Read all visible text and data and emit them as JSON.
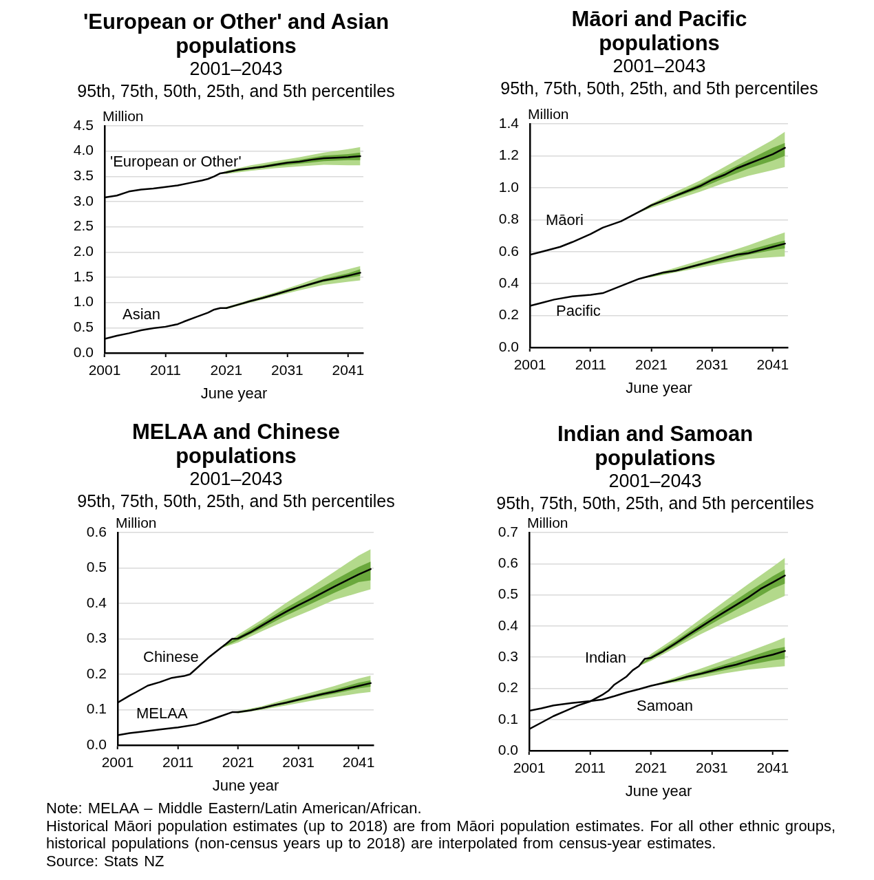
{
  "chart_data": [
    {
      "type": "line",
      "title": "'European or Other' and Asian populations",
      "subtitle": "2001–2043\n95th, 75th, 50th, 25th, and 5th percentiles",
      "xlabel": "June year",
      "ylabel": "Million",
      "xlim": [
        2001,
        2043.5
      ],
      "xticks": [
        2001,
        2011,
        2021,
        2031,
        2041
      ],
      "ylim": [
        0,
        4.5
      ],
      "yticks": [
        {
          "value": 0,
          "label": "0.0"
        },
        0.5,
        {
          "value": 1,
          "label": "1.0"
        },
        1.5,
        {
          "value": 2,
          "label": "2.0"
        },
        2.5,
        {
          "value": 3,
          "label": "3.0"
        },
        3.5,
        {
          "value": 4,
          "label": "4.0"
        },
        4.5
      ],
      "grid": "y",
      "marker": "none",
      "series": [
        {
          "name": "'European or Other'",
          "color": "#000000",
          "x": [
            2001,
            2003,
            2005,
            2007,
            2009,
            2011,
            2013,
            2015,
            2017,
            2018,
            2019,
            2020,
            2021,
            2023,
            2025,
            2027,
            2029,
            2031,
            2033,
            2035,
            2037,
            2039,
            2041,
            2043
          ],
          "values": [
            3.08,
            3.12,
            3.2,
            3.24,
            3.26,
            3.29,
            3.32,
            3.37,
            3.42,
            3.45,
            3.5,
            3.56,
            3.58,
            3.63,
            3.66,
            3.69,
            3.73,
            3.77,
            3.79,
            3.83,
            3.86,
            3.87,
            3.88,
            3.9
          ]
        },
        {
          "name": "Asian",
          "color": "#000000",
          "x": [
            2001,
            2003,
            2005,
            2007,
            2009,
            2011,
            2013,
            2014,
            2016,
            2018,
            2019,
            2020,
            2021,
            2023,
            2025,
            2027,
            2029,
            2031,
            2033,
            2035,
            2037,
            2039,
            2041,
            2043
          ],
          "values": [
            0.28,
            0.34,
            0.39,
            0.45,
            0.49,
            0.52,
            0.57,
            0.62,
            0.71,
            0.8,
            0.86,
            0.89,
            0.89,
            0.96,
            1.03,
            1.09,
            1.16,
            1.23,
            1.3,
            1.37,
            1.44,
            1.48,
            1.53,
            1.59
          ]
        },
        {
          "color": "#b3d98b",
          "x": [
            2020,
            2021,
            2025,
            2029,
            2033,
            2037,
            2041,
            2043
          ],
          "values": [
            null,
            null,
            null,
            null,
            null,
            null,
            null,
            null
          ],
          "lower": [
            3.56,
            3.55,
            3.61,
            3.66,
            3.7,
            3.73,
            3.72,
            3.72
          ],
          "upper": [
            3.56,
            3.61,
            3.72,
            3.8,
            3.88,
            3.97,
            4.04,
            4.08
          ]
        },
        {
          "color": "#6aa83c",
          "x": [
            2020,
            2021,
            2025,
            2029,
            2033,
            2037,
            2041,
            2043
          ],
          "values": [
            null,
            null,
            null,
            null,
            null,
            null,
            null,
            null
          ],
          "lower": [
            3.56,
            3.57,
            3.64,
            3.7,
            3.75,
            3.8,
            3.82,
            3.82
          ],
          "upper": [
            3.56,
            3.59,
            3.68,
            3.76,
            3.83,
            3.91,
            3.94,
            3.97
          ]
        },
        {
          "color": "#b3d98c",
          "x": [
            2020,
            2021,
            2025,
            2029,
            2033,
            2037,
            2041,
            2043
          ],
          "values": [
            null,
            null,
            null,
            null,
            null,
            null,
            null,
            null
          ],
          "lower": [
            0.89,
            0.87,
            1.0,
            1.12,
            1.24,
            1.35,
            1.41,
            1.44
          ],
          "upper": [
            0.89,
            0.91,
            1.06,
            1.2,
            1.36,
            1.53,
            1.66,
            1.72
          ]
        },
        {
          "color": "#6aa83d",
          "x": [
            2020,
            2021,
            2025,
            2029,
            2033,
            2037,
            2041,
            2043
          ],
          "values": [
            null,
            null,
            null,
            null,
            null,
            null,
            null,
            null
          ],
          "lower": [
            0.89,
            0.88,
            1.02,
            1.14,
            1.28,
            1.41,
            1.49,
            1.53
          ],
          "upper": [
            0.89,
            0.9,
            1.04,
            1.18,
            1.32,
            1.47,
            1.58,
            1.66
          ]
        }
      ]
    },
    {
      "type": "line",
      "title": "Māori and Pacific populations",
      "subtitle": "2001–2043\n95th, 75th, 50th, 25th, and 5th percentiles",
      "xlabel": "June year",
      "ylabel": "Million",
      "xlim": [
        2001,
        2043.5
      ],
      "xticks": [
        2001,
        2011,
        2021,
        2031,
        2041
      ],
      "ylim": [
        0,
        1.4
      ],
      "yticks": [
        {
          "value": 0,
          "label": "0.0"
        },
        0.2,
        0.4,
        0.6,
        0.8,
        {
          "value": 1,
          "label": "1.0"
        },
        1.2,
        1.4
      ],
      "grid": "y",
      "marker": "none",
      "series": [
        {
          "name": "Māori",
          "color": "#000000",
          "x": [
            2001,
            2003,
            2006,
            2008,
            2011,
            2013,
            2016,
            2018,
            2020,
            2021,
            2023,
            2025,
            2027,
            2029,
            2031,
            2033,
            2035,
            2037,
            2039,
            2041,
            2043
          ],
          "values": [
            0.58,
            0.6,
            0.63,
            0.66,
            0.71,
            0.75,
            0.79,
            0.83,
            0.87,
            0.89,
            0.92,
            0.95,
            0.98,
            1.01,
            1.05,
            1.08,
            1.12,
            1.15,
            1.18,
            1.21,
            1.25
          ]
        },
        {
          "name": "Pacific",
          "color": "#000000",
          "x": [
            2001,
            2003,
            2005,
            2008,
            2011,
            2013,
            2015,
            2017,
            2019,
            2021,
            2023,
            2025,
            2027,
            2029,
            2031,
            2033,
            2035,
            2037,
            2039,
            2041,
            2043
          ],
          "values": [
            0.26,
            0.28,
            0.3,
            0.32,
            0.33,
            0.34,
            0.37,
            0.4,
            0.43,
            0.45,
            0.47,
            0.48,
            0.5,
            0.52,
            0.54,
            0.56,
            0.58,
            0.59,
            0.61,
            0.63,
            0.65
          ]
        },
        {
          "color": "#b3d98b",
          "x": [
            2018,
            2021,
            2025,
            2029,
            2033,
            2037,
            2041,
            2043
          ],
          "values": [
            null,
            null,
            null,
            null,
            null,
            null,
            null,
            null
          ],
          "lower": [
            0.83,
            0.875,
            0.925,
            0.975,
            1.03,
            1.075,
            1.11,
            1.13
          ],
          "upper": [
            0.83,
            0.9,
            0.975,
            1.045,
            1.13,
            1.215,
            1.3,
            1.35
          ]
        },
        {
          "color": "#6aa83c",
          "x": [
            2018,
            2021,
            2025,
            2029,
            2033,
            2037,
            2041,
            2043
          ],
          "values": [
            null,
            null,
            null,
            null,
            null,
            null,
            null,
            null
          ],
          "lower": [
            0.83,
            0.883,
            0.94,
            0.995,
            1.06,
            1.12,
            1.17,
            1.2
          ],
          "upper": [
            0.83,
            0.893,
            0.96,
            1.025,
            1.1,
            1.175,
            1.25,
            1.28
          ]
        },
        {
          "color": "#b3d98c",
          "x": [
            2019,
            2021,
            2025,
            2029,
            2033,
            2037,
            2041,
            2043
          ],
          "values": [
            null,
            null,
            null,
            null,
            null,
            null,
            null,
            null
          ],
          "lower": [
            0.43,
            0.44,
            0.47,
            0.5,
            0.53,
            0.555,
            0.565,
            0.57
          ],
          "upper": [
            0.43,
            0.455,
            0.5,
            0.545,
            0.59,
            0.64,
            0.695,
            0.72
          ]
        },
        {
          "color": "#6aa83d",
          "x": [
            2019,
            2021,
            2025,
            2029,
            2033,
            2037,
            2041,
            2043
          ],
          "values": [
            null,
            null,
            null,
            null,
            null,
            null,
            null,
            null
          ],
          "lower": [
            0.43,
            0.443,
            0.477,
            0.51,
            0.546,
            0.58,
            0.61,
            0.62
          ],
          "upper": [
            0.43,
            0.45,
            0.488,
            0.527,
            0.568,
            0.61,
            0.652,
            0.67
          ]
        }
      ]
    },
    {
      "type": "line",
      "title": "MELAA and Chinese populations",
      "subtitle": "2001–2043\n95th, 75th, 50th, 25th, and 5th percentiles",
      "xlabel": "June year",
      "ylabel": "Million",
      "xlim": [
        2001,
        2043.5
      ],
      "xticks": [
        2001,
        2011,
        2021,
        2031,
        2041
      ],
      "ylim": [
        0,
        0.6
      ],
      "yticks": [
        {
          "value": 0,
          "label": "0.0"
        },
        0.1,
        0.2,
        0.3,
        0.4,
        0.5,
        0.6
      ],
      "grid": "y",
      "marker": "none",
      "series": [
        {
          "name": "Chinese",
          "color": "#000000",
          "x": [
            2001,
            2003,
            2004,
            2006,
            2008,
            2010,
            2012,
            2013,
            2014,
            2016,
            2018,
            2019,
            2020,
            2021,
            2023,
            2025,
            2027,
            2029,
            2031,
            2033,
            2035,
            2037,
            2039,
            2041,
            2043
          ],
          "values": [
            0.12,
            0.14,
            0.149,
            0.168,
            0.178,
            0.19,
            0.195,
            0.2,
            0.215,
            0.246,
            0.273,
            0.286,
            0.3,
            0.301,
            0.318,
            0.338,
            0.358,
            0.377,
            0.395,
            0.412,
            0.43,
            0.448,
            0.465,
            0.482,
            0.497
          ]
        },
        {
          "name": "MELAA",
          "color": "#000000",
          "x": [
            2001,
            2003,
            2005,
            2008,
            2011,
            2014,
            2016,
            2018,
            2020,
            2021,
            2023,
            2025,
            2027,
            2029,
            2031,
            2033,
            2035,
            2037,
            2039,
            2041,
            2043
          ],
          "values": [
            0.028,
            0.034,
            0.038,
            0.044,
            0.05,
            0.058,
            0.069,
            0.081,
            0.093,
            0.093,
            0.098,
            0.105,
            0.113,
            0.12,
            0.128,
            0.136,
            0.144,
            0.151,
            0.159,
            0.167,
            0.175
          ]
        },
        {
          "color": "#b3d98b",
          "x": [
            2018,
            2021,
            2025,
            2029,
            2033,
            2037,
            2041,
            2043
          ],
          "values": [
            null,
            null,
            null,
            null,
            null,
            null,
            null,
            null
          ],
          "lower": [
            0.273,
            0.29,
            0.322,
            0.352,
            0.38,
            0.41,
            0.43,
            0.44
          ],
          "upper": [
            0.273,
            0.312,
            0.355,
            0.402,
            0.445,
            0.49,
            0.535,
            0.553
          ]
        },
        {
          "color": "#6aa83c",
          "x": [
            2018,
            2021,
            2025,
            2029,
            2033,
            2037,
            2041,
            2043
          ],
          "values": [
            null,
            null,
            null,
            null,
            null,
            null,
            null,
            null
          ],
          "lower": [
            0.273,
            0.296,
            0.33,
            0.366,
            0.398,
            0.43,
            0.46,
            0.465
          ],
          "upper": [
            0.273,
            0.306,
            0.346,
            0.388,
            0.426,
            0.466,
            0.503,
            0.518
          ]
        },
        {
          "color": "#b3d98c",
          "x": [
            2020,
            2021,
            2025,
            2029,
            2033,
            2037,
            2041,
            2043
          ],
          "values": [
            null,
            null,
            null,
            null,
            null,
            null,
            null,
            null
          ],
          "lower": [
            0.093,
            0.09,
            0.1,
            0.112,
            0.125,
            0.136,
            0.146,
            0.15
          ],
          "upper": [
            0.093,
            0.096,
            0.11,
            0.13,
            0.148,
            0.167,
            0.188,
            0.196
          ]
        },
        {
          "color": "#6aa83d",
          "x": [
            2020,
            2021,
            2025,
            2029,
            2033,
            2037,
            2041,
            2043
          ],
          "values": [
            null,
            null,
            null,
            null,
            null,
            null,
            null,
            null
          ],
          "lower": [
            0.093,
            0.092,
            0.103,
            0.117,
            0.132,
            0.145,
            0.16,
            0.165
          ],
          "upper": [
            0.093,
            0.094,
            0.107,
            0.124,
            0.141,
            0.157,
            0.176,
            0.183
          ]
        }
      ]
    },
    {
      "type": "line",
      "title": "Indian and Samoan populations",
      "subtitle": "2001–2043\n95th, 75th, 50th, 25th, and 5th percentiles",
      "xlabel": "June year",
      "ylabel": "Million",
      "xlim": [
        2001,
        2043.5
      ],
      "xticks": [
        2001,
        2011,
        2021,
        2031,
        2041
      ],
      "ylim": [
        0,
        0.7
      ],
      "yticks": [
        {
          "value": 0,
          "label": "0.0"
        },
        0.1,
        0.2,
        0.3,
        0.4,
        0.5,
        0.6,
        0.7
      ],
      "grid": "y",
      "marker": "none",
      "series": [
        {
          "name": "Indian",
          "color": "#000000",
          "x": [
            2001,
            2003,
            2005,
            2007,
            2009,
            2011,
            2013,
            2014,
            2015,
            2017,
            2018,
            2019,
            2020,
            2021,
            2023,
            2025,
            2027,
            2029,
            2031,
            2033,
            2035,
            2037,
            2039,
            2041,
            2043
          ],
          "values": [
            0.069,
            0.09,
            0.111,
            0.128,
            0.145,
            0.158,
            0.179,
            0.192,
            0.212,
            0.238,
            0.258,
            0.271,
            0.295,
            0.298,
            0.319,
            0.344,
            0.37,
            0.395,
            0.42,
            0.444,
            0.468,
            0.492,
            0.519,
            0.54,
            0.562
          ]
        },
        {
          "name": "Samoan",
          "color": "#000000",
          "x": [
            2001,
            2003,
            2005,
            2008,
            2011,
            2013,
            2015,
            2017,
            2019,
            2021,
            2023,
            2025,
            2027,
            2029,
            2031,
            2033,
            2035,
            2037,
            2039,
            2041,
            2043
          ],
          "values": [
            0.128,
            0.136,
            0.145,
            0.153,
            0.159,
            0.164,
            0.175,
            0.187,
            0.197,
            0.208,
            0.217,
            0.226,
            0.238,
            0.246,
            0.256,
            0.267,
            0.276,
            0.288,
            0.299,
            0.308,
            0.32
          ]
        },
        {
          "color": "#b3d98b",
          "x": [
            2019,
            2021,
            2025,
            2029,
            2033,
            2037,
            2041,
            2043
          ],
          "values": [
            null,
            null,
            null,
            null,
            null,
            null,
            null,
            null
          ],
          "lower": [
            0.271,
            0.288,
            0.33,
            0.372,
            0.41,
            0.445,
            0.48,
            0.497
          ],
          "upper": [
            0.271,
            0.31,
            0.362,
            0.42,
            0.478,
            0.535,
            0.59,
            0.619
          ]
        },
        {
          "color": "#6aa83c",
          "x": [
            2019,
            2021,
            2025,
            2029,
            2033,
            2037,
            2041,
            2043
          ],
          "values": [
            null,
            null,
            null,
            null,
            null,
            null,
            null,
            null
          ],
          "lower": [
            0.271,
            0.293,
            0.337,
            0.385,
            0.43,
            0.474,
            0.52,
            0.536
          ],
          "upper": [
            0.271,
            0.303,
            0.352,
            0.405,
            0.458,
            0.51,
            0.56,
            0.582
          ]
        },
        {
          "color": "#b3d98c",
          "x": [
            2021,
            2025,
            2029,
            2033,
            2037,
            2041,
            2043
          ],
          "values": [
            null,
            null,
            null,
            null,
            null,
            null,
            null
          ],
          "lower": [
            0.208,
            0.219,
            0.233,
            0.248,
            0.26,
            0.268,
            0.271
          ],
          "upper": [
            0.208,
            0.235,
            0.262,
            0.29,
            0.318,
            0.347,
            0.363
          ]
        },
        {
          "color": "#6aa83d",
          "x": [
            2021,
            2025,
            2029,
            2033,
            2037,
            2041,
            2043
          ],
          "values": [
            null,
            null,
            null,
            null,
            null,
            null,
            null
          ],
          "lower": [
            0.208,
            0.223,
            0.241,
            0.258,
            0.275,
            0.29,
            0.295
          ],
          "upper": [
            0.208,
            0.23,
            0.252,
            0.276,
            0.3,
            0.325,
            0.333
          ]
        }
      ],
      "annotations": [
        "Note: MELAA – Middle Eastern/Latin American/African.",
        "Historical Māori population estimates (up to 2018) are from Māori population estimates. For all other ethnic groups, historical populations (non-census years up to 2018) are interpolated from census-year estimates.",
        "Source: Stats NZ"
      ]
    }
  ]
}
